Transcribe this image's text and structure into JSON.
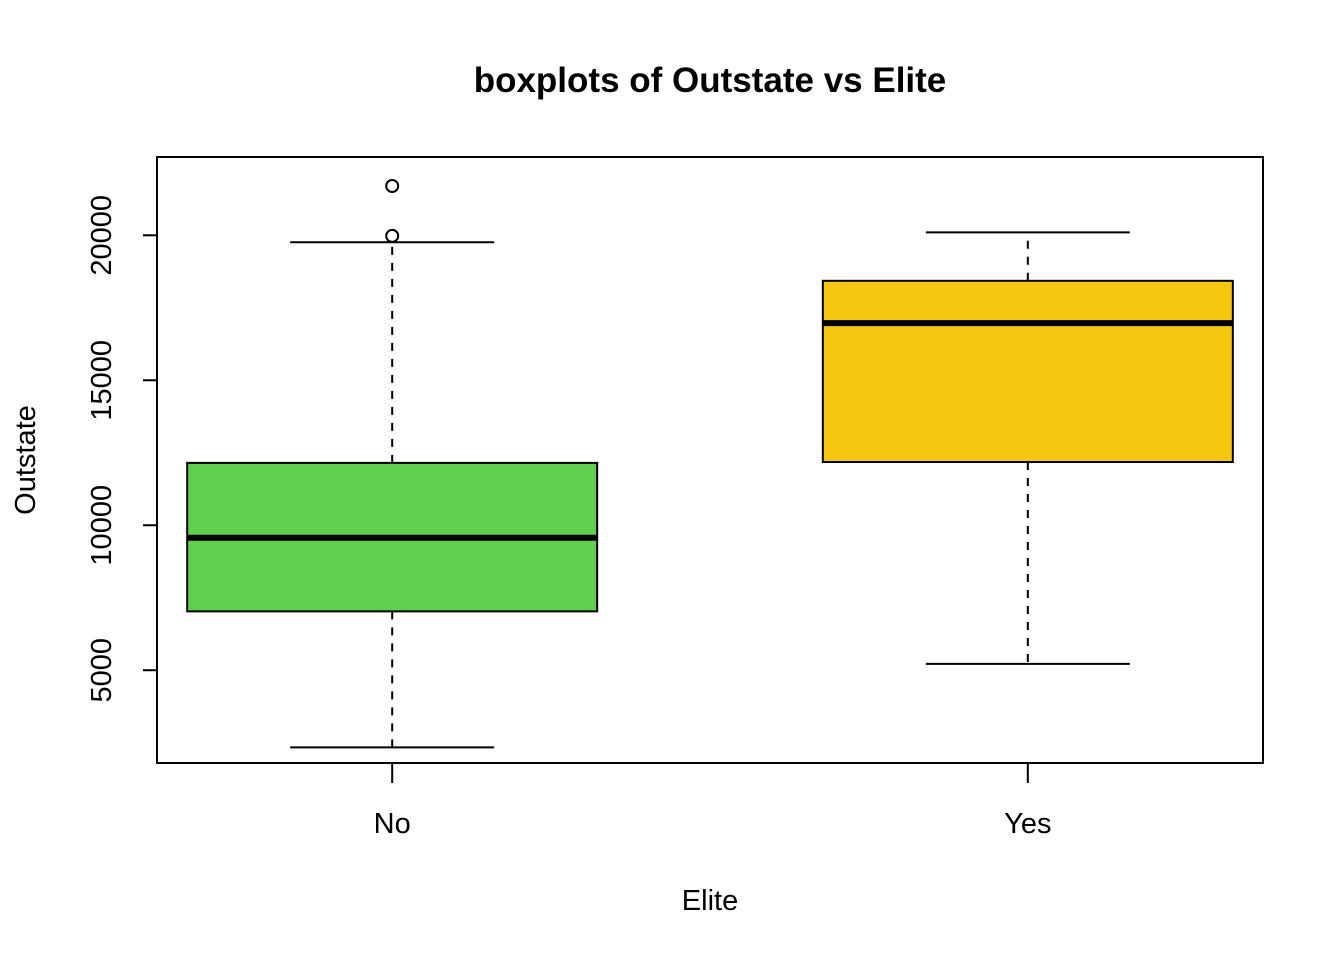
{
  "chart_data": {
    "type": "boxplot",
    "title": "boxplots of Outstate vs Elite",
    "xlabel": "Elite",
    "ylabel": "Outstate",
    "categories": [
      "No",
      "Yes"
    ],
    "ylim": [
      1800,
      22700
    ],
    "yticks": [
      5000,
      10000,
      15000,
      20000
    ],
    "ytick_labels": [
      "5000",
      "10000",
      "15000",
      "20000"
    ],
    "grid": false,
    "series": [
      {
        "category": "No",
        "whisker_low": 2340,
        "q1": 7030,
        "median": 9570,
        "q3": 12150,
        "whisker_high": 19760,
        "outliers": [
          19980,
          21700
        ],
        "color": "#61D04F"
      },
      {
        "category": "Yes",
        "whisker_low": 5220,
        "q1": 12180,
        "median": 16970,
        "q3": 18430,
        "whisker_high": 20100,
        "outliers": [],
        "color": "#F5C710"
      }
    ]
  }
}
